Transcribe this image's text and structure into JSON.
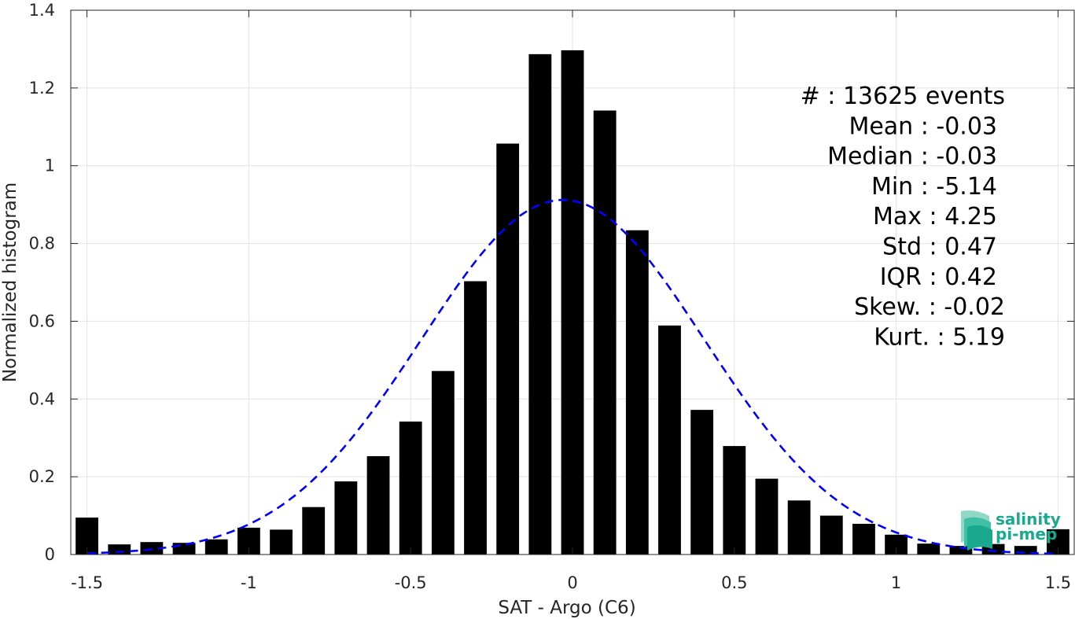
{
  "chart_data": {
    "type": "bar",
    "xlabel": "SAT - Argo (C6)",
    "ylabel": "Normalized histogram",
    "xlim": [
      -1.55,
      1.55
    ],
    "ylim": [
      0,
      1.4
    ],
    "xticks": [
      -1.5,
      -1,
      -0.5,
      0,
      0.5,
      1,
      1.5
    ],
    "xtick_labels": [
      "-1.5",
      "-1",
      "-0.5",
      "0",
      "0.5",
      "1",
      "1.5"
    ],
    "yticks": [
      0,
      0.2,
      0.4,
      0.6,
      0.8,
      1,
      1.2,
      1.4
    ],
    "ytick_labels": [
      "0",
      "0.2",
      "0.4",
      "0.6",
      "0.8",
      "1",
      "1.2",
      "1.4"
    ],
    "grid": true,
    "bar_color": "#000000",
    "bin_width": 0.1,
    "x": [
      -1.5,
      -1.4,
      -1.3,
      -1.2,
      -1.1,
      -1.0,
      -0.9,
      -0.8,
      -0.7,
      -0.6,
      -0.5,
      -0.4,
      -0.3,
      -0.2,
      -0.1,
      0.0,
      0.1,
      0.2,
      0.3,
      0.4,
      0.5,
      0.6,
      0.7,
      0.8,
      0.9,
      1.0,
      1.1,
      1.2,
      1.3,
      1.4,
      1.5
    ],
    "values": [
      0.095,
      0.026,
      0.032,
      0.03,
      0.039,
      0.069,
      0.064,
      0.122,
      0.188,
      0.253,
      0.342,
      0.472,
      0.703,
      1.057,
      1.287,
      1.297,
      1.142,
      0.834,
      0.589,
      0.372,
      0.279,
      0.195,
      0.139,
      0.1,
      0.079,
      0.051,
      0.028,
      0.022,
      0.027,
      0.022,
      0.065
    ],
    "fit_curve": {
      "color": "#0000ff",
      "style": "dashed",
      "mean": -0.03,
      "std": 0.437,
      "peak": 0.912
    },
    "stats": [
      "#  : 13625 events",
      "Mean : -0.03",
      "Median : -0.03",
      "Min : -5.14",
      "Max : 4.25",
      "Std : 0.47",
      "IQR : 0.42",
      "Skew. : -0.02",
      "Kurt. : 5.19"
    ]
  },
  "logo": {
    "line1": "salinity",
    "line2": "pi-mep",
    "color": "#19a98e"
  }
}
